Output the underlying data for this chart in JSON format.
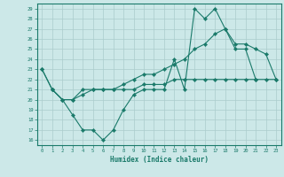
{
  "xlabel": "Humidex (Indice chaleur)",
  "xlim": [
    -0.5,
    23.5
  ],
  "ylim": [
    15.5,
    29.5
  ],
  "bg_color": "#cce8e8",
  "grid_color": "#aacccc",
  "line_color": "#1a7a6a",
  "line1_x": [
    0,
    1,
    2,
    3,
    4,
    5,
    6,
    7,
    8,
    9,
    10,
    11,
    12,
    13,
    14,
    15,
    16,
    17,
    18,
    19,
    20,
    21
  ],
  "line1_y": [
    23,
    21,
    20,
    18.5,
    17,
    17,
    16,
    17,
    19,
    20.5,
    21,
    21,
    21,
    24,
    21,
    29,
    28,
    29,
    27,
    25,
    25,
    22
  ],
  "line2_x": [
    0,
    1,
    2,
    3,
    4,
    5,
    6,
    7,
    8,
    9,
    10,
    11,
    12,
    13,
    14,
    15,
    16,
    17,
    18,
    19,
    20,
    21,
    22,
    23
  ],
  "line2_y": [
    23,
    21,
    20,
    20,
    21,
    21,
    21,
    21,
    21.5,
    22,
    22.5,
    22.5,
    23,
    23.5,
    24,
    25,
    25.5,
    26.5,
    27,
    25.5,
    25.5,
    25,
    24.5,
    22
  ],
  "line3_x": [
    1,
    2,
    3,
    4,
    5,
    6,
    7,
    8,
    9,
    10,
    11,
    12,
    13,
    14,
    15,
    16,
    17,
    18,
    19,
    20,
    21,
    22,
    23
  ],
  "line3_y": [
    21,
    20,
    20,
    20.5,
    21,
    21,
    21,
    21,
    21,
    21.5,
    21.5,
    21.5,
    22,
    22,
    22,
    22,
    22,
    22,
    22,
    22,
    22,
    22,
    22
  ]
}
